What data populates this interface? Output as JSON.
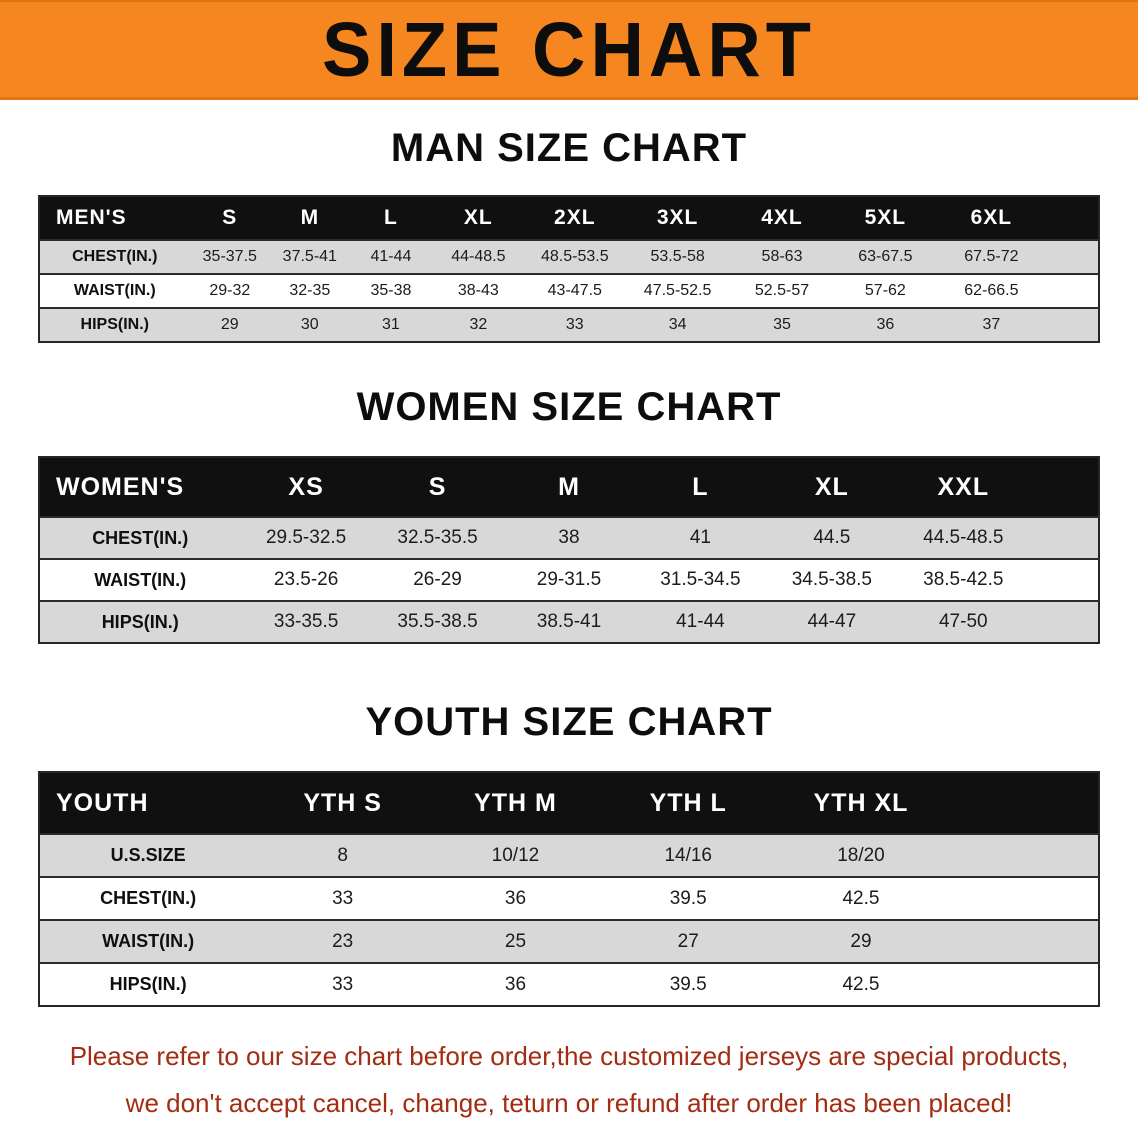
{
  "banner": {
    "title": "SIZE CHART",
    "bg_color": "#f6861f",
    "text_color": "#0d0d0d"
  },
  "sections": [
    {
      "heading": "MAN SIZE CHART",
      "table": {
        "header": [
          "MEN'S",
          "S",
          "M",
          "L",
          "XL",
          "2XL",
          "3XL",
          "4XL",
          "5XL",
          "6XL"
        ],
        "rows": [
          {
            "label": "CHEST(IN.)",
            "values": [
              "35-37.5",
              "37.5-41",
              "41-44",
              "44-48.5",
              "48.5-53.5",
              "53.5-58",
              "58-63",
              "63-67.5",
              "67.5-72"
            ]
          },
          {
            "label": "WAIST(IN.)",
            "values": [
              "29-32",
              "32-35",
              "35-38",
              "38-43",
              "43-47.5",
              "47.5-52.5",
              "52.5-57",
              "57-62",
              "62-66.5"
            ]
          },
          {
            "label": "HIPS(IN.)",
            "values": [
              "29",
              "30",
              "31",
              "32",
              "33",
              "34",
              "35",
              "36",
              "37"
            ]
          }
        ]
      }
    },
    {
      "heading": "WOMEN SIZE CHART",
      "table": {
        "header": [
          "WOMEN'S",
          "XS",
          "S",
          "M",
          "L",
          "XL",
          "XXL"
        ],
        "rows": [
          {
            "label": "CHEST(IN.)",
            "values": [
              "29.5-32.5",
              "32.5-35.5",
              "38",
              "41",
              "44.5",
              "44.5-48.5"
            ]
          },
          {
            "label": "WAIST(IN.)",
            "values": [
              "23.5-26",
              "26-29",
              "29-31.5",
              "31.5-34.5",
              "34.5-38.5",
              "38.5-42.5"
            ]
          },
          {
            "label": "HIPS(IN.)",
            "values": [
              "33-35.5",
              "35.5-38.5",
              "38.5-41",
              "41-44",
              "44-47",
              "47-50"
            ]
          }
        ]
      }
    },
    {
      "heading": "YOUTH SIZE CHART",
      "table": {
        "header": [
          "YOUTH",
          "YTH S",
          "YTH M",
          "YTH L",
          "YTH XL"
        ],
        "rows": [
          {
            "label": "U.S.SIZE",
            "values": [
              "8",
              "10/12",
              "14/16",
              "18/20"
            ]
          },
          {
            "label": "CHEST(IN.)",
            "values": [
              "33",
              "36",
              "39.5",
              "42.5"
            ]
          },
          {
            "label": "WAIST(IN.)",
            "values": [
              "23",
              "25",
              "27",
              "29"
            ]
          },
          {
            "label": "HIPS(IN.)",
            "values": [
              "33",
              "36",
              "39.5",
              "42.5"
            ]
          }
        ]
      }
    }
  ],
  "disclaimer": {
    "line1": "Please refer to our size chart before order,the customized jerseys are special products,",
    "line2": "we don't accept cancel, change, teturn or refund after order has been placed!",
    "text_color": "#a32c12"
  }
}
